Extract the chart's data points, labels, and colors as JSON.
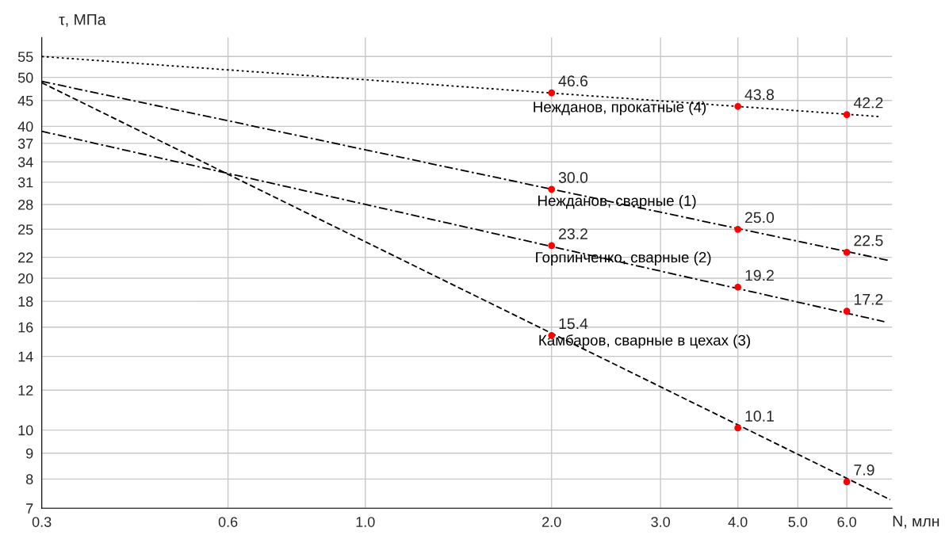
{
  "chart_data": {
    "type": "scatter",
    "xlabel": "N, млн",
    "ylabel": "τ, МПа",
    "log": "xy",
    "grid": true,
    "xlim": [
      0.3,
      7.1
    ],
    "ylim": [
      7,
      60
    ],
    "xticks": [
      {
        "value": 0.3,
        "label": "0.3"
      },
      {
        "value": 0.6,
        "label": "0.6"
      },
      {
        "value": 1,
        "label": "1.0"
      },
      {
        "value": 2,
        "label": "2.0"
      },
      {
        "value": 3,
        "label": "3.0"
      },
      {
        "value": 4,
        "label": "4.0"
      },
      {
        "value": 5,
        "label": "5.0"
      },
      {
        "value": 6,
        "label": "6.0"
      }
    ],
    "yticks": [
      7,
      8,
      9,
      10,
      12,
      14,
      16,
      18,
      20,
      22,
      25,
      28,
      31,
      34,
      37,
      40,
      45,
      50,
      55
    ],
    "series": [
      {
        "type": "line",
        "name": "Нежданов, прокатные (4)",
        "color": "#000000",
        "line_style": "dotted",
        "marker": "none",
        "x": [
          0.3,
          6.8
        ],
        "values": [
          55,
          41.8
        ]
      },
      {
        "type": "line",
        "name": "Нежданов, сварные (1)",
        "color": "#000000",
        "line_style": "dashdot",
        "marker": "none",
        "x": [
          0.3,
          7.0
        ],
        "values": [
          49.1,
          21.7
        ]
      },
      {
        "type": "line",
        "name": "Горпинченко, сварные (2)",
        "color": "#000000",
        "line_style": "dashdot",
        "marker": "none",
        "x": [
          0.3,
          6.9
        ],
        "values": [
          39.1,
          16.4
        ]
      },
      {
        "type": "line",
        "name": "Камбаров, сварные в цехах (3)",
        "color": "#000000",
        "line_style": "dashed",
        "marker": "none",
        "x": [
          0.3,
          7.05
        ],
        "values": [
          48.8,
          7.28
        ]
      },
      {
        "color": "#ff0000",
        "x": [
          2,
          4,
          6
        ],
        "values": [
          46.6,
          43.8,
          42.2
        ],
        "value_labels": [
          "46.6",
          "43.8",
          "42.2"
        ]
      },
      {
        "color": "#ff0000",
        "x": [
          2,
          4,
          6
        ],
        "values": [
          30.0,
          25.0,
          22.5
        ],
        "value_labels": [
          "30.0",
          "25.0",
          "22.5"
        ]
      },
      {
        "color": "#ff0000",
        "x": [
          2,
          4,
          6
        ],
        "values": [
          23.2,
          19.2,
          17.2
        ],
        "value_labels": [
          "23.2",
          "19.2",
          "17.2"
        ]
      },
      {
        "color": "#ff0000",
        "x": [
          2,
          4,
          6
        ],
        "values": [
          15.4,
          10.1,
          7.9
        ],
        "value_labels": [
          "15.4",
          "10.1",
          "7.9"
        ]
      }
    ],
    "marker": "circle"
  }
}
